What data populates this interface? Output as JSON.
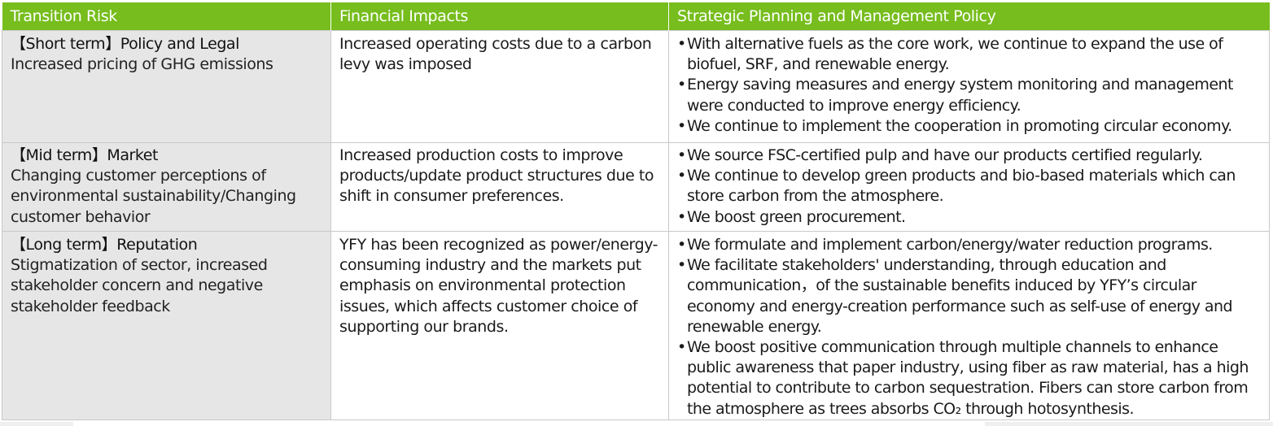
{
  "table": {
    "headers": [
      "Transition Risk",
      "Financial Impacts",
      "Strategic Planning and Management Policy"
    ],
    "rows": [
      {
        "risk_title": "【Short term】Policy and Legal",
        "risk_desc": "Increased pricing of GHG emissions",
        "impact": "Increased operating costs due to a carbon levy was imposed",
        "policies": [
          "With alternative fuels as the core work, we continue to expand the use of biofuel, SRF, and renewable energy.",
          "Energy saving measures and energy system monitoring and management were conducted to improve energy efficiency.",
          "We continue to implement the cooperation in promoting circular economy."
        ]
      },
      {
        "risk_title": "【Mid term】Market",
        "risk_desc": "Changing customer perceptions of environmental sustainability/Changing customer behavior",
        "impact": "Increased production costs to improve products/update product structures due to shift in consumer preferences.",
        "policies": [
          "We source FSC-certified pulp and have our products certified regularly.",
          "We continue to develop green products and bio-based materials which can store carbon from the atmosphere.",
          "We boost green procurement."
        ]
      },
      {
        "risk_title": "【Long term】Reputation",
        "risk_desc": "Stigmatization of sector, increased stakeholder concern and negative stakeholder feedback",
        "impact": "YFY has been recognized as power/energy-consuming industry and the markets put emphasis on environmental protection issues, which affects customer choice of supporting our brands.",
        "policies": [
          "We formulate and implement carbon/energy/water reduction programs.",
          "We facilitate stakeholders' understanding, through education and communication，of the sustainable benefits induced by YFY’s circular economy and energy-creation performance such as self-use of energy and renewable energy.",
          "We boost positive communication through multiple channels to enhance public awareness that paper industry, using fiber as raw material, has a high potential to contribute to carbon sequestration. Fibers can store carbon from the atmosphere as trees absorbs CO₂ through hotosynthesis."
        ]
      }
    ]
  }
}
